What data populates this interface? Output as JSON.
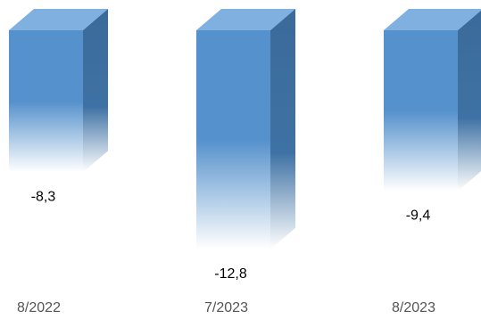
{
  "chart_data": {
    "type": "bar",
    "categories": [
      "8/2022",
      "7/2023",
      "8/2023"
    ],
    "values": [
      -8.3,
      -12.8,
      -9.4
    ],
    "value_labels": [
      "-8,3",
      "-12,8",
      "-9,4"
    ],
    "title": "",
    "xlabel": "",
    "ylabel": "",
    "ylim": [
      -14,
      0
    ],
    "grid": false,
    "legend": "none",
    "style": "3d-gradient"
  },
  "colors": {
    "bar_front_top": "#5591cc",
    "bar_front_bottom": "#ffffff",
    "bar_side": "#3a6a9a",
    "bar_top": "#7fb0e0",
    "text": "#000000"
  }
}
